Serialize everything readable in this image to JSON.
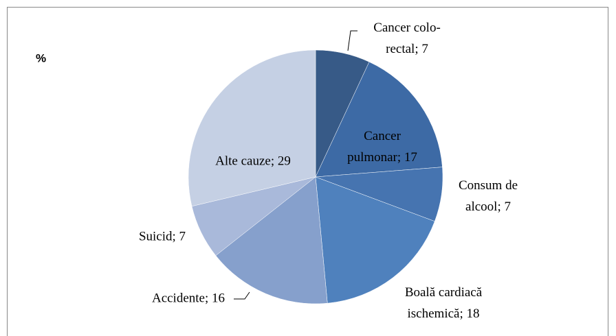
{
  "chart_data": {
    "type": "pie",
    "title": "%",
    "values": [
      7,
      17,
      7,
      18,
      16,
      7,
      29
    ],
    "value_labels": [
      "Cancer colo-\nrectal; 7",
      "Cancer\npulmonar; 17",
      "Consum de\nalcool; 7",
      "Boală cardiacă\nischemică; 18",
      "Accidente; 16",
      "Suicid; 7",
      "Alte cauze; 29"
    ],
    "colors": [
      "#375a87",
      "#3d6aa5",
      "#4674b0",
      "#4f81bd",
      "#86a0cc",
      "#a9b9da",
      "#c5d0e4"
    ]
  }
}
